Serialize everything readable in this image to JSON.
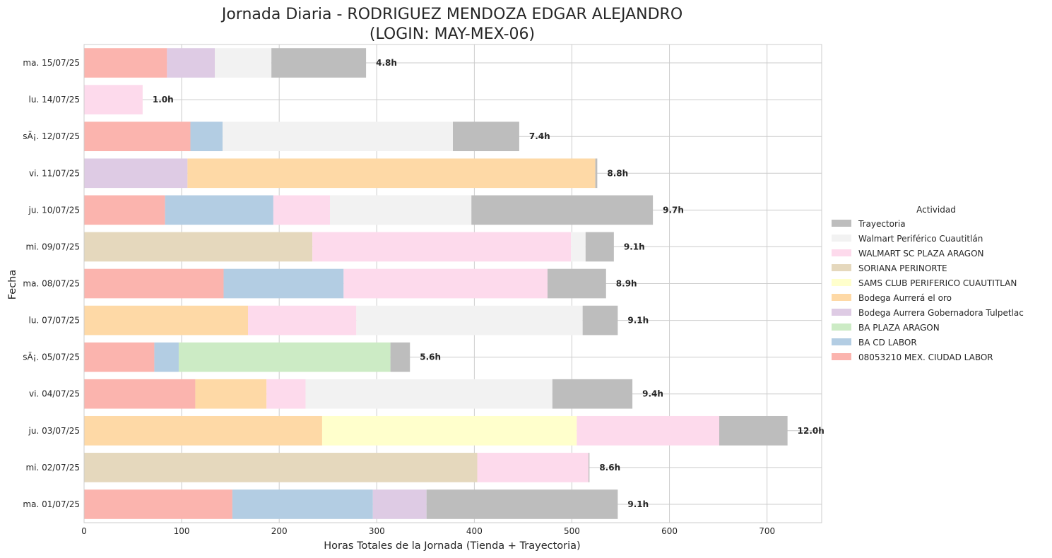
{
  "chart_data": {
    "type": "bar",
    "orientation": "horizontal",
    "stacked": true,
    "title": "Jornada Diaria - RODRIGUEZ MENDOZA EDGAR ALEJANDRO",
    "subtitle": "(LOGIN: MAY-MEX-06)",
    "xlabel": "Horas Totales de la Jornada (Tienda + Trayectoria)",
    "ylabel": "Fecha",
    "xlim": [
      0,
      756
    ],
    "xticks": [
      0,
      100,
      200,
      300,
      400,
      500,
      600,
      700
    ],
    "grid": true,
    "legend_title": "Actividad",
    "legend_position": "center-right",
    "categories": [
      "ma. 15/07/25",
      "lu. 14/07/25",
      "sÃ¡. 12/07/25",
      "vi. 11/07/25",
      "ju. 10/07/25",
      "mi. 09/07/25",
      "ma. 08/07/25",
      "lu. 07/07/25",
      "sÃ¡. 05/07/25",
      "vi. 04/07/25",
      "ju. 03/07/25",
      "mi. 02/07/25",
      "ma. 01/07/25"
    ],
    "totals": [
      "4.8h",
      "1.0h",
      "7.4h",
      "8.8h",
      "9.7h",
      "9.1h",
      "8.9h",
      "9.1h",
      "5.6h",
      "9.4h",
      "12.0h",
      "8.6h",
      "9.1h"
    ],
    "series": [
      {
        "name": "08053210 MEX. CIUDAD LABOR",
        "color": "#fbb4ae",
        "values": [
          85,
          0,
          109,
          0,
          83,
          0,
          143,
          0,
          72,
          114,
          0,
          0,
          152
        ]
      },
      {
        "name": "BA CD LABOR",
        "color": "#b3cde3",
        "values": [
          0,
          0,
          33,
          0,
          111,
          0,
          123,
          0,
          25,
          0,
          0,
          0,
          144
        ]
      },
      {
        "name": "BA PLAZA ARAGON",
        "color": "#ccebc5",
        "values": [
          0,
          0,
          0,
          0,
          0,
          0,
          0,
          0,
          217,
          0,
          0,
          0,
          0
        ]
      },
      {
        "name": "Bodega Aurrera Gobernadora Tulpetlac",
        "color": "#decbe4",
        "values": [
          49,
          0,
          0,
          106,
          0,
          0,
          0,
          0,
          0,
          0,
          0,
          0,
          55
        ]
      },
      {
        "name": "Bodega Aurrerá el oro",
        "color": "#fed9a6",
        "values": [
          0,
          0,
          0,
          418,
          0,
          0,
          0,
          168,
          0,
          73,
          244,
          0,
          0
        ]
      },
      {
        "name": "SAMS CLUB PERIFERICO CUAUTITLAN",
        "color": "#ffffcc",
        "values": [
          0,
          0,
          0,
          0,
          0,
          0,
          0,
          0,
          0,
          0,
          261,
          0,
          0
        ]
      },
      {
        "name": "SORIANA PERINORTE",
        "color": "#e5d8bd",
        "values": [
          0,
          0,
          0,
          0,
          0,
          234,
          0,
          0,
          0,
          0,
          0,
          403,
          0
        ]
      },
      {
        "name": "WALMART SC PLAZA ARAGON",
        "color": "#fddaec",
        "values": [
          0,
          60,
          0,
          0,
          58,
          265,
          209,
          111,
          0,
          40,
          146,
          114,
          0
        ]
      },
      {
        "name": "Walmart Periférico Cuautitlán",
        "color": "#f2f2f2",
        "values": [
          58,
          0,
          236,
          0,
          145,
          15,
          0,
          232,
          0,
          253,
          0,
          0,
          0
        ]
      },
      {
        "name": "Trayectoria",
        "color": "#bdbdbd",
        "values": [
          97,
          0,
          68,
          2,
          186,
          29,
          60,
          36,
          20,
          82,
          70,
          1,
          196
        ]
      }
    ]
  }
}
